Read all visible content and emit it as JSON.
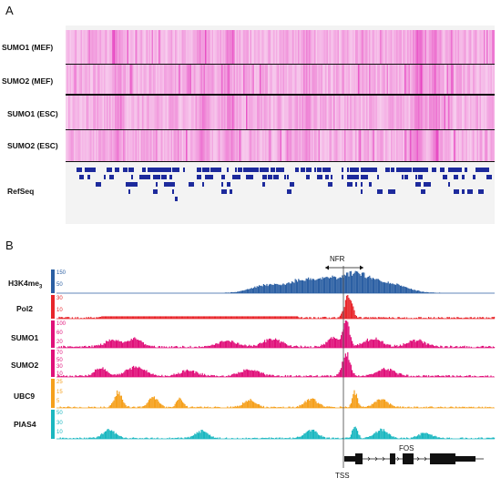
{
  "panel_a": {
    "letter": "A",
    "tracks": [
      "SUMO1 (MEF)",
      "SUMO2 (MEF)",
      "SUMO1 (ESC)",
      "SUMO2 (ESC)"
    ],
    "refseq_label": "RefSeq",
    "heat_color": "#e010b0"
  },
  "panel_b": {
    "letter": "B",
    "nfr_label": "NFR",
    "tss_label": "TSS",
    "gene_label": "FOS",
    "tracks": [
      {
        "name": "H3K4me",
        "sub": "3",
        "color": "#2b5fa3",
        "ticks": [
          "150",
          "50"
        ]
      },
      {
        "name": "Pol2",
        "sub": "",
        "color": "#e8262b",
        "ticks": [
          "30",
          "10"
        ]
      },
      {
        "name": "SUMO1",
        "sub": "",
        "color": "#e0107a",
        "ticks": [
          "100",
          "60",
          "20"
        ]
      },
      {
        "name": "SUMO2",
        "sub": "",
        "color": "#e0107a",
        "ticks": [
          "70",
          "50",
          "30",
          "10"
        ]
      },
      {
        "name": "UBC9",
        "sub": "",
        "color": "#f5a01c",
        "ticks": [
          "25",
          "15",
          "5"
        ]
      },
      {
        "name": "PIAS4",
        "sub": "",
        "color": "#1bb7c0",
        "ticks": [
          "50",
          "30",
          "10"
        ]
      }
    ]
  }
}
